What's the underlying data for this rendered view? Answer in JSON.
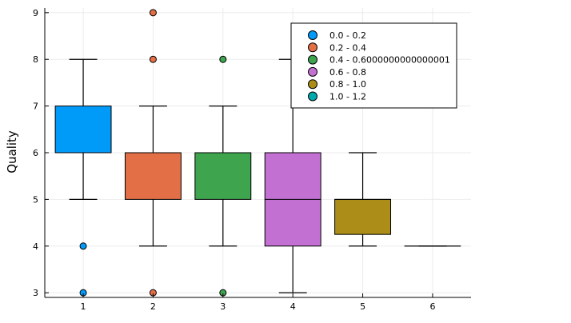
{
  "chart_data": {
    "type": "box",
    "ylabel": "Quality",
    "xlabel": "",
    "title": "",
    "x_ticks": [
      "1",
      "2",
      "3",
      "4",
      "5",
      "6"
    ],
    "y_ticks": [
      "3",
      "4",
      "5",
      "6",
      "7",
      "8",
      "9"
    ],
    "ylim": [
      2.9,
      9.1
    ],
    "xlim": [
      0.45,
      6.55
    ],
    "grid": true,
    "legend_position": "top-right",
    "series": [
      {
        "name": "0.0 - 0.2",
        "x": 1,
        "color": "#009AF9",
        "whisker_low": 5,
        "q1": 6,
        "median": 6,
        "q3": 7,
        "whisker_high": 8,
        "outliers": [
          4,
          3
        ]
      },
      {
        "name": "0.2 - 0.4",
        "x": 2,
        "color": "#E26F46",
        "whisker_low": 4,
        "q1": 5,
        "median": 6,
        "q3": 6,
        "whisker_high": 7,
        "outliers": [
          9,
          8,
          3
        ]
      },
      {
        "name": "0.4 - 0.6000000000000001",
        "x": 3,
        "color": "#3EA44E",
        "whisker_low": 4,
        "q1": 5,
        "median": 6,
        "q3": 6,
        "whisker_high": 7,
        "outliers": [
          8,
          3
        ]
      },
      {
        "name": "0.6 - 0.8",
        "x": 4,
        "color": "#C271D2",
        "whisker_low": 3,
        "q1": 4,
        "median": 5,
        "q3": 6,
        "whisker_high": 8,
        "outliers": []
      },
      {
        "name": "0.8 - 1.0",
        "x": 5,
        "color": "#AC8D18",
        "whisker_low": 4,
        "q1": 4.25,
        "median": 5,
        "q3": 5,
        "whisker_high": 6,
        "outliers": []
      },
      {
        "name": "1.0 - 1.2",
        "x": 6,
        "color": "#00A9AD",
        "whisker_low": 4,
        "q1": 4,
        "median": 4,
        "q3": 4,
        "whisker_high": 4,
        "outliers": []
      }
    ]
  }
}
